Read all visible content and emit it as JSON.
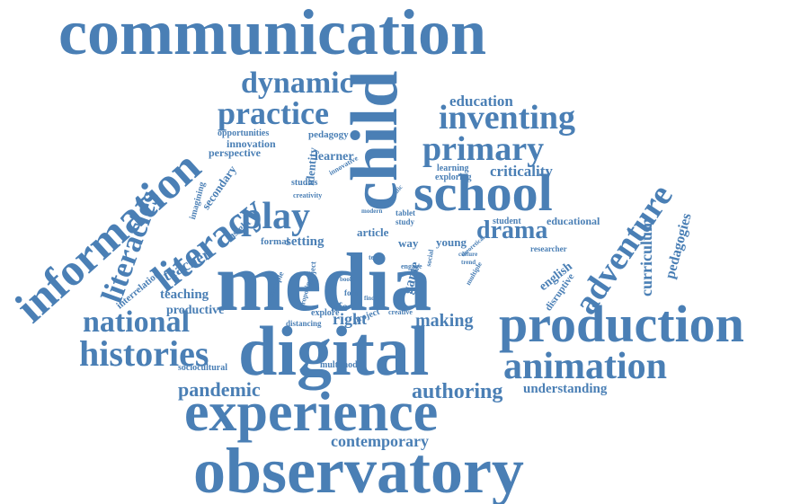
{
  "theme": {
    "word_color": "#4a7fb5",
    "background": "#ffffff"
  },
  "words": [
    {
      "text": "communication"
    },
    {
      "text": "observatory"
    },
    {
      "text": "experience"
    },
    {
      "text": "digital"
    },
    {
      "text": "media"
    },
    {
      "text": "production"
    },
    {
      "text": "child"
    },
    {
      "text": "school"
    },
    {
      "text": "information"
    },
    {
      "text": "animation"
    },
    {
      "text": "adventure"
    },
    {
      "text": "literacy"
    },
    {
      "text": "literacies"
    },
    {
      "text": "histories"
    },
    {
      "text": "national"
    },
    {
      "text": "play"
    },
    {
      "text": "primary"
    },
    {
      "text": "inventing"
    },
    {
      "text": "practice"
    },
    {
      "text": "dynamic"
    },
    {
      "text": "drama"
    },
    {
      "text": "authoring"
    },
    {
      "text": "pandemic"
    },
    {
      "text": "contemporary"
    },
    {
      "text": "making"
    },
    {
      "text": "curriculum"
    },
    {
      "text": "pedagogies"
    },
    {
      "text": "criticality"
    },
    {
      "text": "education"
    },
    {
      "text": "understanding"
    },
    {
      "text": "teacher"
    },
    {
      "text": "right"
    },
    {
      "text": "teaching"
    },
    {
      "text": "productive"
    },
    {
      "text": "game"
    },
    {
      "text": "english"
    },
    {
      "text": "setting"
    },
    {
      "text": "learner"
    },
    {
      "text": "secondary"
    },
    {
      "text": "imagining"
    },
    {
      "text": "interrelation"
    },
    {
      "text": "sociocultural"
    },
    {
      "text": "multimodal"
    },
    {
      "text": "educational"
    },
    {
      "text": "student"
    },
    {
      "text": "researcher"
    },
    {
      "text": "young"
    },
    {
      "text": "disruptive"
    },
    {
      "text": "identity"
    },
    {
      "text": "innovation"
    },
    {
      "text": "opportunities"
    },
    {
      "text": "perspective"
    },
    {
      "text": "pedagogy"
    },
    {
      "text": "studies"
    },
    {
      "text": "creativity"
    },
    {
      "text": "insight"
    },
    {
      "text": "formal"
    },
    {
      "text": "explore"
    },
    {
      "text": "distancing"
    },
    {
      "text": "article"
    },
    {
      "text": "way"
    },
    {
      "text": "life"
    },
    {
      "text": "learning"
    },
    {
      "text": "exploring"
    },
    {
      "text": "study"
    },
    {
      "text": "tablet"
    },
    {
      "text": "creative"
    },
    {
      "text": "project"
    },
    {
      "text": "engage"
    },
    {
      "text": "subject"
    },
    {
      "text": "proposing"
    },
    {
      "text": "example"
    },
    {
      "text": "form"
    },
    {
      "text": "book"
    },
    {
      "text": "text"
    },
    {
      "text": "innovative"
    },
    {
      "text": "modern"
    },
    {
      "text": "specific"
    },
    {
      "text": "theoretical"
    },
    {
      "text": "social"
    },
    {
      "text": "culture"
    },
    {
      "text": "trend"
    },
    {
      "text": "finding"
    },
    {
      "text": "multiple"
    }
  ]
}
